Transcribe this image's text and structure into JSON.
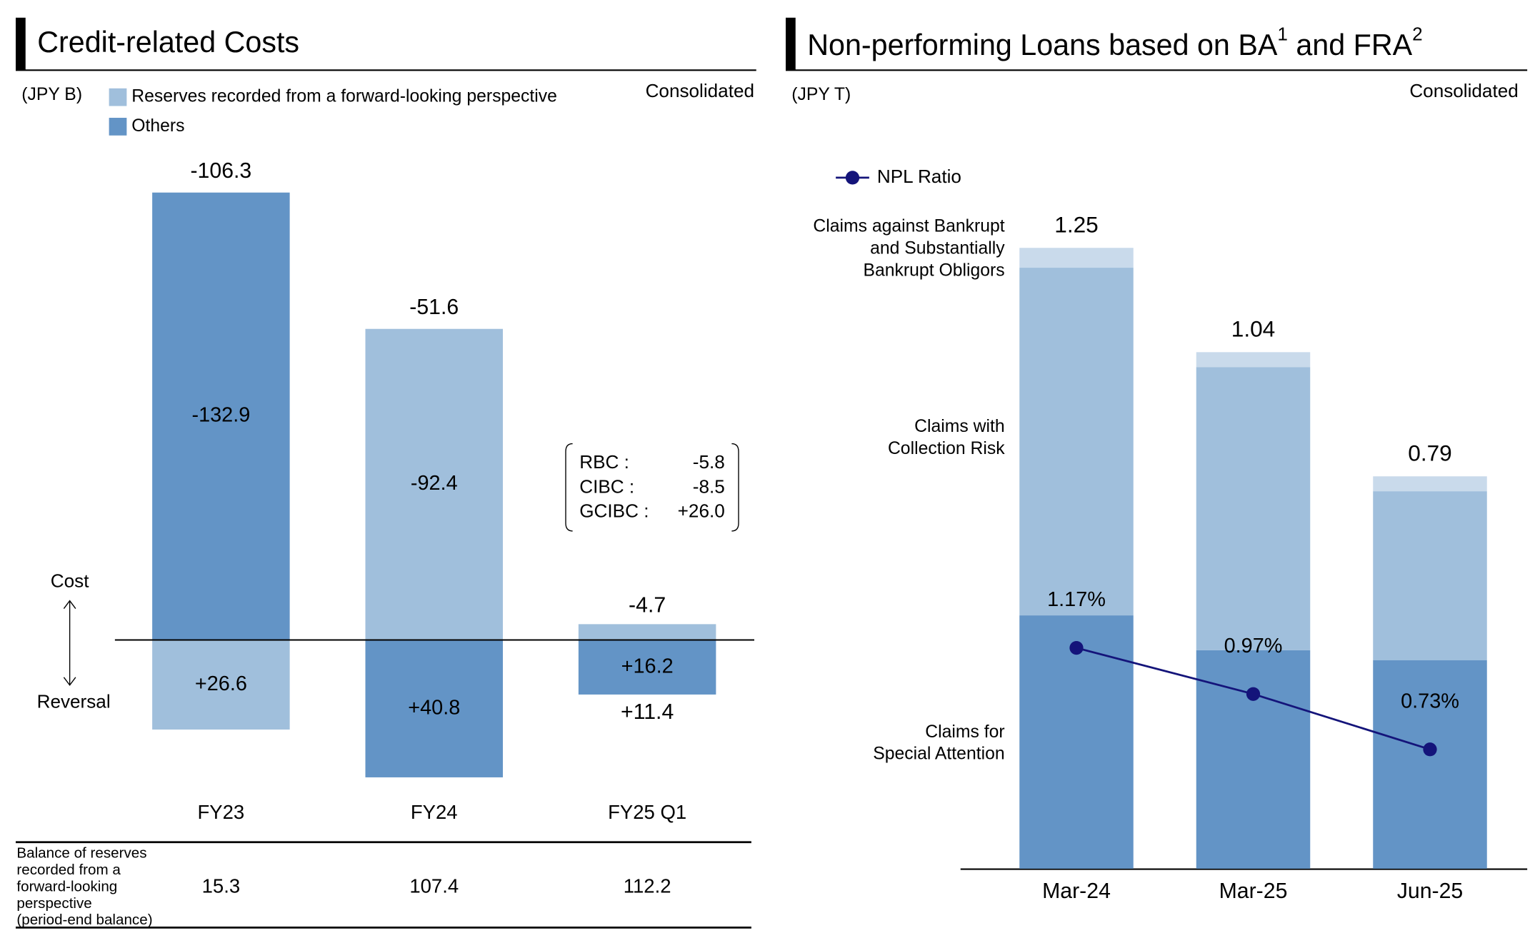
{
  "chart_data": [
    {
      "type": "diverging_bar",
      "title": "Credit-related Costs",
      "unit": "(JPY B)",
      "scope": "Consolidated",
      "categories": [
        "FY23",
        "FY24",
        "FY25 Q1"
      ],
      "series": [
        {
          "name": "Reserves recorded from a forward-looking perspective",
          "color": "#a0bfdc",
          "label_color": "#000000",
          "values": [
            26.6,
            -92.4,
            -4.7
          ],
          "value_labels": [
            "+26.6",
            "-92.4",
            "-4.7"
          ]
        },
        {
          "name": "Others",
          "color": "#6394c6",
          "label_color": "#ffffff",
          "values": [
            -132.9,
            40.8,
            16.2
          ],
          "value_labels": [
            "-132.9",
            "+40.8",
            "+16.2"
          ]
        }
      ],
      "totals": [
        -106.3,
        -51.6,
        11.4
      ],
      "total_labels": [
        "-106.3",
        "-51.6",
        "+11.4"
      ],
      "direction_labels": [
        "Cost",
        "Reversal"
      ],
      "breakdown": [
        {
          "name": "RBC :",
          "value": -5.8
        },
        {
          "name": "CIBC :",
          "value": -8.5
        },
        {
          "name": "GCIBC :",
          "value": 26.0,
          "value_label": "+26.0"
        }
      ],
      "balance_header": [
        "Balance of reserves",
        "recorded from a",
        "forward-looking",
        "perspective",
        "(period-end balance)"
      ],
      "balance": [
        15.3,
        107.4,
        112.2
      ]
    },
    {
      "type": "stacked_bar_line",
      "title": [
        "Non-performing Loans based on BA",
        "1",
        " and FRA",
        "2"
      ],
      "unit": "(JPY T)",
      "scope": "Consolidated",
      "categories": [
        "Mar-24",
        "Mar-25",
        "Jun-25"
      ],
      "series": [
        {
          "name": "Claims for\nSpecial Attention",
          "color": "#6394c6",
          "values": [
            0.51,
            0.44,
            0.42
          ]
        },
        {
          "name": "Claims with\nCollection Risk",
          "color": "#a0bfdc",
          "values": [
            0.7,
            0.57,
            0.34
          ]
        },
        {
          "name": "Claims against Bankrupt\nand Substantially\nBankrupt Obligors",
          "color": "#c9daeb",
          "values": [
            0.04,
            0.03,
            0.03
          ]
        }
      ],
      "totals": [
        1.25,
        1.04,
        0.79
      ],
      "line": {
        "name": "NPL Ratio",
        "color": "#14147a",
        "axis": "y2",
        "values": [
          1.17,
          0.97,
          0.73
        ],
        "value_labels": [
          "1.17%",
          "0.97%",
          "0.73%"
        ]
      }
    }
  ]
}
